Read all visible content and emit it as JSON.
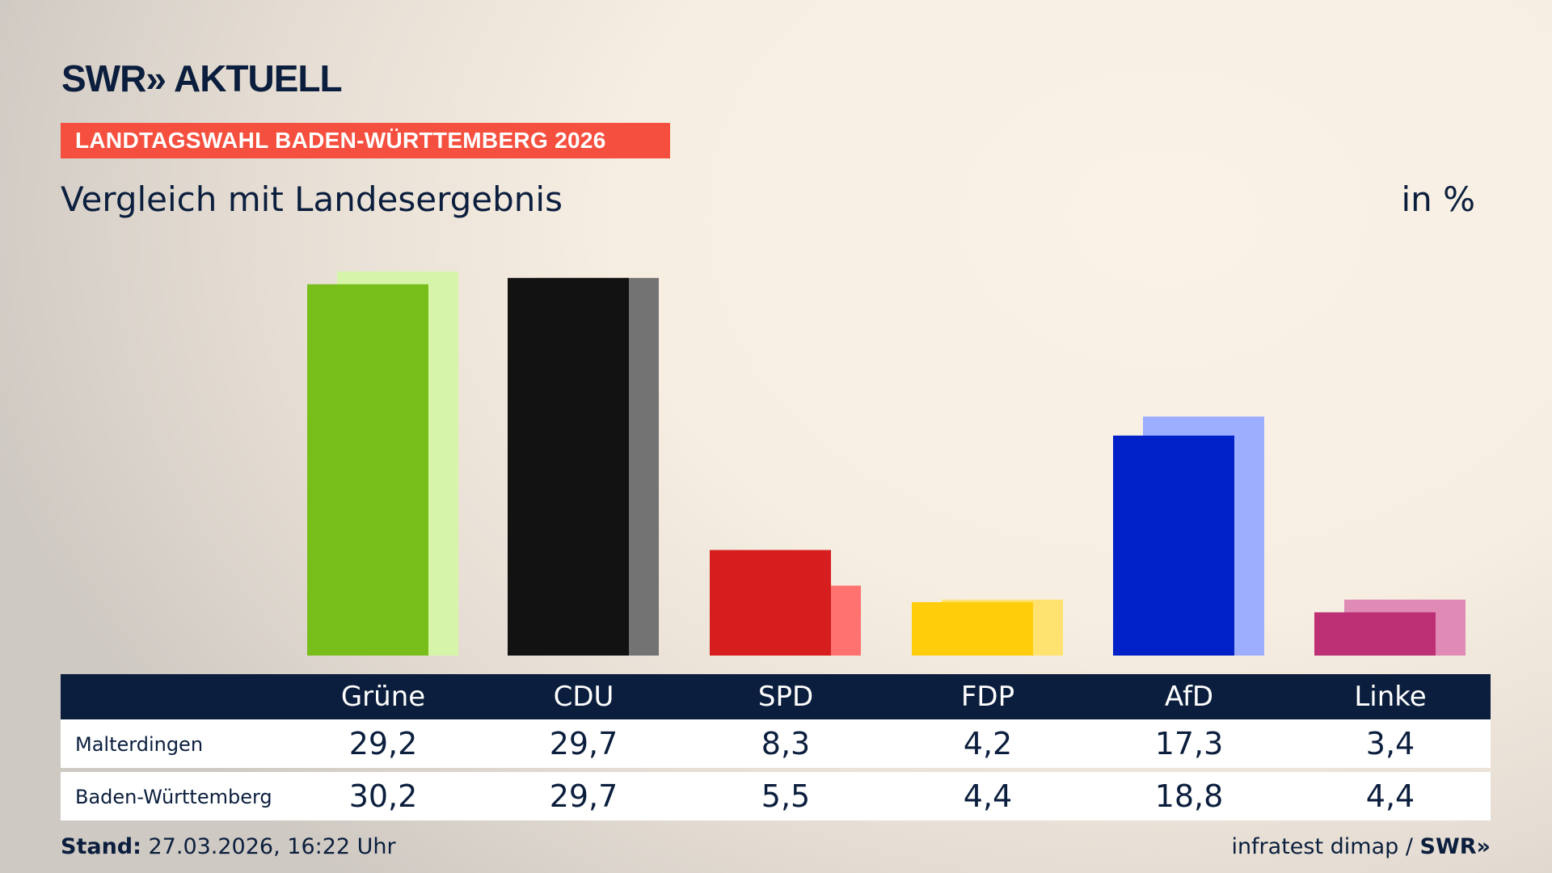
{
  "header": {
    "logo": "SWR» AKTUELL",
    "banner": "LANDTAGSWAHL BADEN-WÜRTTEMBERG 2026",
    "subtitle": "Vergleich mit Landesergebnis",
    "unit": "in %"
  },
  "chart_data": {
    "type": "bar",
    "categories": [
      "Grüne",
      "CDU",
      "SPD",
      "FDP",
      "AfD",
      "Linke"
    ],
    "series": [
      {
        "name": "Malterdingen",
        "values": [
          29.2,
          29.7,
          8.3,
          4.2,
          17.3,
          3.4
        ]
      },
      {
        "name": "Baden-Württemberg",
        "values": [
          30.2,
          29.7,
          5.5,
          4.4,
          18.8,
          4.4
        ]
      }
    ],
    "value_labels": {
      "Malterdingen": [
        "29,2",
        "29,7",
        "8,3",
        "4,2",
        "17,3",
        "3,4"
      ],
      "Baden-Württemberg": [
        "30,2",
        "29,7",
        "5,5",
        "4,4",
        "18,8",
        "4,4"
      ]
    },
    "colors": {
      "front": [
        "#78be1a",
        "#121212",
        "#d61e1e",
        "#ffcd0a",
        "#0021c8",
        "#be3075"
      ],
      "back": [
        "#d6f5a9",
        "#737373",
        "#ff7270",
        "#ffe270",
        "#9eaeff",
        "#e08bb5"
      ]
    },
    "ylim": [
      0,
      31
    ]
  },
  "footer": {
    "stand_label": "Stand:",
    "stand_value": " 27.03.2026, 16:22 Uhr",
    "source": "infratest dimap / ",
    "source_logo": "SWR»"
  }
}
